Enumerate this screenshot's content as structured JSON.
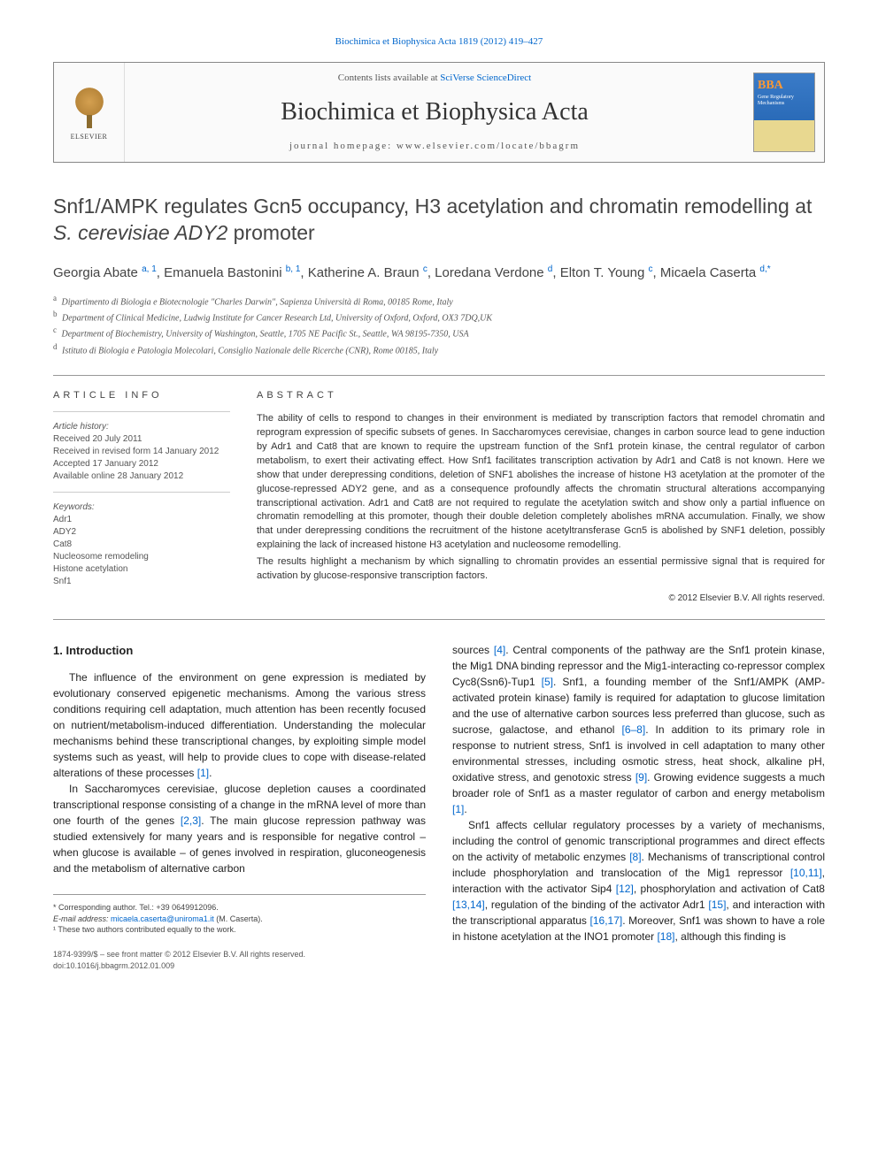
{
  "top_link": "Biochimica et Biophysica Acta 1819 (2012) 419–427",
  "header": {
    "contents_prefix": "Contents lists available at ",
    "contents_link": "SciVerse ScienceDirect",
    "journal_name": "Biochimica et Biophysica Acta",
    "homepage_label": "journal homepage: www.elsevier.com/locate/bbagrm",
    "elsevier": "ELSEVIER",
    "bba_label": "BBA",
    "bba_sub": "Gene Regulatory Mechanisms"
  },
  "title_parts": {
    "pre": "Snf1/AMPK regulates Gcn5 occupancy, H3 acetylation and chromatin remodelling at ",
    "italic": "S. cerevisiae ADY2",
    "post": " promoter"
  },
  "authors": [
    {
      "name": "Georgia Abate",
      "sup": "a, 1"
    },
    {
      "name": "Emanuela Bastonini",
      "sup": "b, 1"
    },
    {
      "name": "Katherine A. Braun",
      "sup": "c"
    },
    {
      "name": "Loredana Verdone",
      "sup": "d"
    },
    {
      "name": "Elton T. Young",
      "sup": "c"
    },
    {
      "name": "Micaela Caserta",
      "sup": "d,",
      "corr": "*"
    }
  ],
  "affiliations": [
    {
      "key": "a",
      "text": "Dipartimento di Biologia e Biotecnologie \"Charles Darwin\", Sapienza Università di Roma, 00185 Rome, Italy"
    },
    {
      "key": "b",
      "text": "Department of Clinical Medicine, Ludwig Institute for Cancer Research Ltd, University of Oxford, Oxford, OX3 7DQ,UK"
    },
    {
      "key": "c",
      "text": "Department of Biochemistry, University of Washington, Seattle, 1705 NE Pacific St., Seattle, WA 98195-7350, USA"
    },
    {
      "key": "d",
      "text": "Istituto di Biologia e Patologia Molecolari, Consiglio Nazionale delle Ricerche (CNR), Rome 00185, Italy"
    }
  ],
  "info": {
    "heading": "ARTICLE INFO",
    "history_head": "Article history:",
    "history": [
      "Received 20 July 2011",
      "Received in revised form 14 January 2012",
      "Accepted 17 January 2012",
      "Available online 28 January 2012"
    ],
    "keywords_head": "Keywords:",
    "keywords": [
      "Adr1",
      "ADY2",
      "Cat8",
      "Nucleosome remodeling",
      "Histone acetylation",
      "Snf1"
    ]
  },
  "abstract": {
    "heading": "ABSTRACT",
    "p1": "The ability of cells to respond to changes in their environment is mediated by transcription factors that remodel chromatin and reprogram expression of specific subsets of genes. In Saccharomyces cerevisiae, changes in carbon source lead to gene induction by Adr1 and Cat8 that are known to require the upstream function of the Snf1 protein kinase, the central regulator of carbon metabolism, to exert their activating effect. How Snf1 facilitates transcription activation by Adr1 and Cat8 is not known. Here we show that under derepressing conditions, deletion of SNF1 abolishes the increase of histone H3 acetylation at the promoter of the glucose-repressed ADY2 gene, and as a consequence profoundly affects the chromatin structural alterations accompanying transcriptional activation. Adr1 and Cat8 are not required to regulate the acetylation switch and show only a partial influence on chromatin remodelling at this promoter, though their double deletion completely abolishes mRNA accumulation. Finally, we show that under derepressing conditions the recruitment of the histone acetyltransferase Gcn5 is abolished by SNF1 deletion, possibly explaining the lack of increased histone H3 acetylation and nucleosome remodelling.",
    "p2": "The results highlight a mechanism by which signalling to chromatin provides an essential permissive signal that is required for activation by glucose-responsive transcription factors.",
    "copyright": "© 2012 Elsevier B.V. All rights reserved."
  },
  "body": {
    "intro_heading": "1. Introduction",
    "left_p1": "The influence of the environment on gene expression is mediated by evolutionary conserved epigenetic mechanisms. Among the various stress conditions requiring cell adaptation, much attention has been recently focused on nutrient/metabolism-induced differentiation. Understanding the molecular mechanisms behind these transcriptional changes, by exploiting simple model systems such as yeast, will help to provide clues to cope with disease-related alterations of these processes ",
    "left_p1_ref": "[1]",
    "left_p1_end": ".",
    "left_p2_a": "In Saccharomyces cerevisiae, glucose depletion causes a coordinated transcriptional response consisting of a change in the mRNA level of more than one fourth of the genes ",
    "left_p2_ref1": "[2,3]",
    "left_p2_b": ". The main glucose repression pathway was studied extensively for many years and is responsible for negative control – when glucose is available – of genes involved in respiration, gluconeogenesis and the metabolism of alternative carbon",
    "right_p1_a": "sources ",
    "right_p1_ref1": "[4]",
    "right_p1_b": ". Central components of the pathway are the Snf1 protein kinase, the Mig1 DNA binding repressor and the Mig1-interacting co-repressor complex Cyc8(Ssn6)-Tup1 ",
    "right_p1_ref2": "[5]",
    "right_p1_c": ". Snf1, a founding member of the Snf1/AMPK (AMP-activated protein kinase) family is required for adaptation to glucose limitation and the use of alternative carbon sources less preferred than glucose, such as sucrose, galactose, and ethanol ",
    "right_p1_ref3": "[6–8]",
    "right_p1_d": ". In addition to its primary role in response to nutrient stress, Snf1 is involved in cell adaptation to many other environmental stresses, including osmotic stress, heat shock, alkaline pH, oxidative stress, and genotoxic stress ",
    "right_p1_ref4": "[9]",
    "right_p1_e": ". Growing evidence suggests a much broader role of Snf1 as a master regulator of carbon and energy metabolism ",
    "right_p1_ref5": "[1]",
    "right_p1_f": ".",
    "right_p2_a": "Snf1 affects cellular regulatory processes by a variety of mechanisms, including the control of genomic transcriptional programmes and direct effects on the activity of metabolic enzymes ",
    "right_p2_ref1": "[8]",
    "right_p2_b": ". Mechanisms of transcriptional control include phosphorylation and translocation of the Mig1 repressor ",
    "right_p2_ref2": "[10,11]",
    "right_p2_c": ", interaction with the activator Sip4 ",
    "right_p2_ref3": "[12]",
    "right_p2_d": ", phosphorylation and activation of Cat8 ",
    "right_p2_ref4": "[13,14]",
    "right_p2_e": ", regulation of the binding of the activator Adr1 ",
    "right_p2_ref5": "[15]",
    "right_p2_f": ", and interaction with the transcriptional apparatus ",
    "right_p2_ref6": "[16,17]",
    "right_p2_g": ". Moreover, Snf1 was shown to have a role in histone acetylation at the INO1 promoter ",
    "right_p2_ref7": "[18]",
    "right_p2_h": ", although this finding is"
  },
  "footnotes": {
    "corr": "* Corresponding author. Tel.: +39 0649912096.",
    "email_label": "E-mail address: ",
    "email": "micaela.caserta@uniroma1.it",
    "email_suffix": " (M. Caserta).",
    "note1": "¹ These two authors contributed equally to the work."
  },
  "bottom": {
    "issn": "1874-9399/$ – see front matter © 2012 Elsevier B.V. All rights reserved.",
    "doi": "doi:10.1016/j.bbagrm.2012.01.009"
  },
  "colors": {
    "link": "#0066cc",
    "text": "#222222",
    "border": "#999999"
  }
}
